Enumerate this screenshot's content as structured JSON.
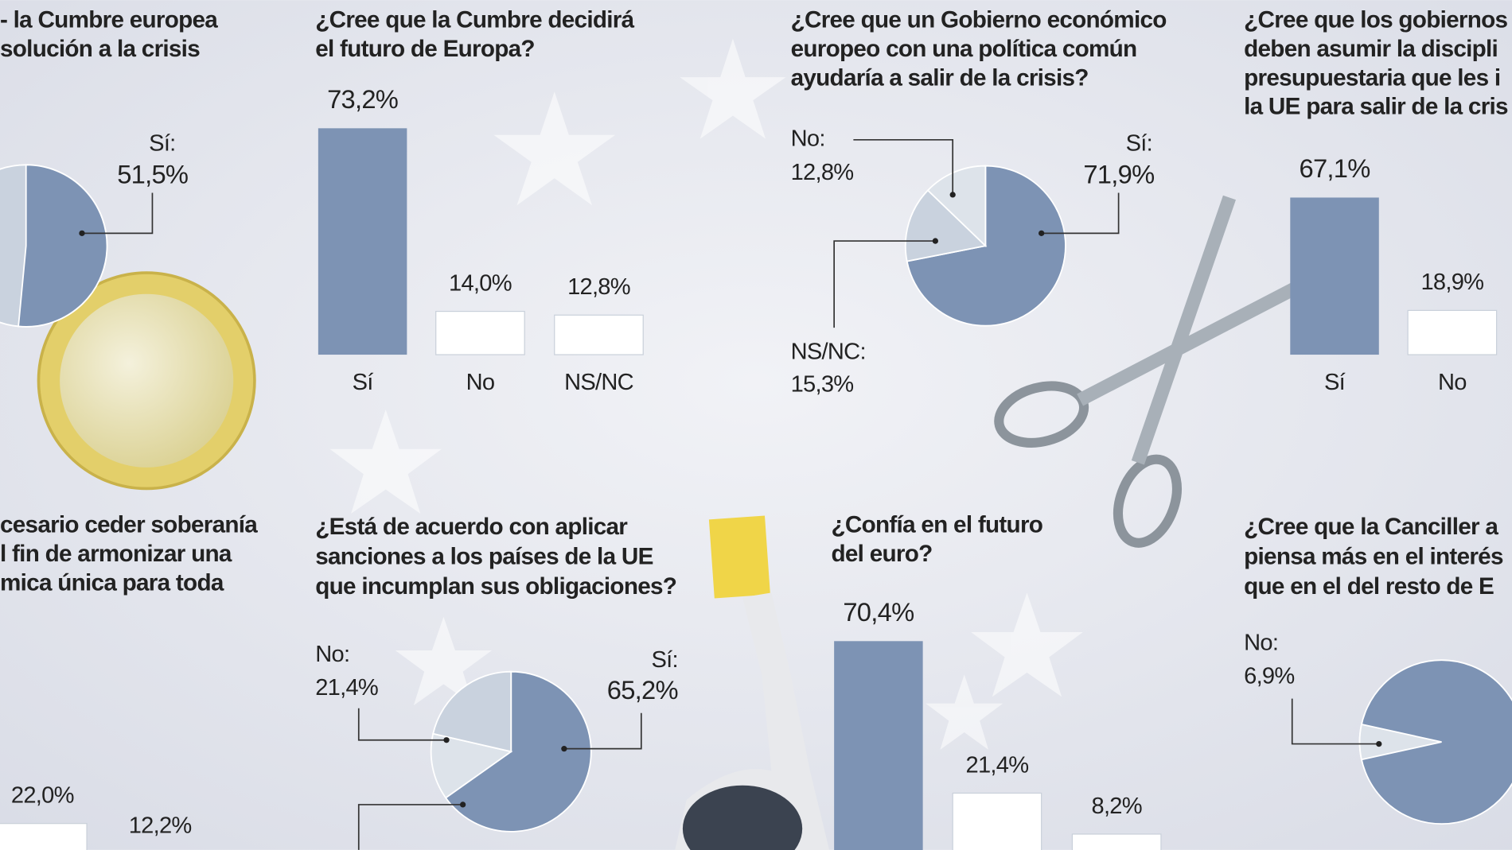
{
  "chart_data": [
    {
      "type": "pie",
      "title": [
        "- la Cumbre europea",
        "solución a la crisis"
      ],
      "categories": [
        "Sí:"
      ],
      "values": [
        51.5
      ],
      "value_labels": [
        "51,5%"
      ],
      "colors": [
        "#7d93b4"
      ],
      "label_colors": [
        "#c8102e"
      ]
    },
    {
      "type": "bar",
      "title": [
        "¿Cree que la Cumbre decidirá",
        "el futuro de Europa?"
      ],
      "categories": [
        "Sí",
        "No",
        "NS/NC"
      ],
      "values": [
        73.2,
        14.0,
        12.8
      ],
      "value_labels": [
        "73,2%",
        "14,0%",
        "12,8%"
      ],
      "colors": [
        "#7d93b4",
        "#ffffff",
        "#ffffff"
      ],
      "label_colors": [
        "#c8102e",
        "#222222",
        "#222222"
      ]
    },
    {
      "type": "pie",
      "title": [
        "¿Cree que un Gobierno económico",
        "europeo con una política común",
        "ayudaría a salir de la crisis?"
      ],
      "categories": [
        "Sí:",
        "NS/NC:",
        "No:"
      ],
      "values": [
        71.9,
        15.3,
        12.8
      ],
      "value_labels": [
        "71,9%",
        "15,3%",
        "12,8%"
      ],
      "colors": [
        "#7d93b4",
        "#c9d2de",
        "#dde3ea"
      ],
      "label_colors": [
        "#c8102e",
        "#222222",
        "#222222"
      ]
    },
    {
      "type": "bar",
      "title": [
        "¿Cree que los gobiernos",
        "deben asumir la discipli",
        "presupuestaria que les i",
        "la UE para salir de la cris"
      ],
      "categories": [
        "Sí",
        "No"
      ],
      "values": [
        67.1,
        18.9
      ],
      "value_labels": [
        "67,1%",
        "18,9%"
      ],
      "colors": [
        "#7d93b4",
        "#ffffff"
      ],
      "label_colors": [
        "#c8102e",
        "#222222"
      ]
    },
    {
      "type": "bar",
      "title": [
        "cesario ceder soberanía",
        "l fin de armonizar una",
        "mica única para toda"
      ],
      "categories": [
        null,
        null
      ],
      "values": [
        22.0,
        12.2
      ],
      "value_labels": [
        "22,0%",
        "12,2%"
      ],
      "colors": [
        "#ffffff",
        "#ffffff"
      ],
      "label_colors": [
        "#222222",
        "#222222"
      ]
    },
    {
      "type": "pie",
      "title": [
        "¿Está de acuerdo con aplicar",
        "sanciones a los países de la UE",
        "que incumplan sus obligaciones?"
      ],
      "categories": [
        "Sí:",
        null,
        "No:"
      ],
      "values": [
        65.2,
        13.4,
        21.4
      ],
      "value_labels": [
        "65,2%",
        null,
        "21,4%"
      ],
      "colors": [
        "#7d93b4",
        "#dde3ea",
        "#c9d2de"
      ],
      "label_colors": [
        "#c8102e",
        "#222222",
        "#222222"
      ]
    },
    {
      "type": "bar",
      "title": [
        "¿Confía en el futuro",
        "del euro?"
      ],
      "categories": [
        null,
        null,
        null
      ],
      "values": [
        70.4,
        21.4,
        8.2
      ],
      "value_labels": [
        "70,4%",
        "21,4%",
        "8,2%"
      ],
      "colors": [
        "#7d93b4",
        "#ffffff",
        "#ffffff"
      ],
      "label_colors": [
        "#c8102e",
        "#222222",
        "#222222"
      ]
    },
    {
      "type": "pie",
      "title": [
        "¿Cree que la Canciller a",
        "piensa más en el interés",
        "que en el del resto de E"
      ],
      "categories": [
        "No:"
      ],
      "values": [
        6.9
      ],
      "value_labels": [
        "6,9%"
      ],
      "colors": [
        "#dde3ea"
      ],
      "label_colors": [
        "#222222"
      ]
    }
  ]
}
